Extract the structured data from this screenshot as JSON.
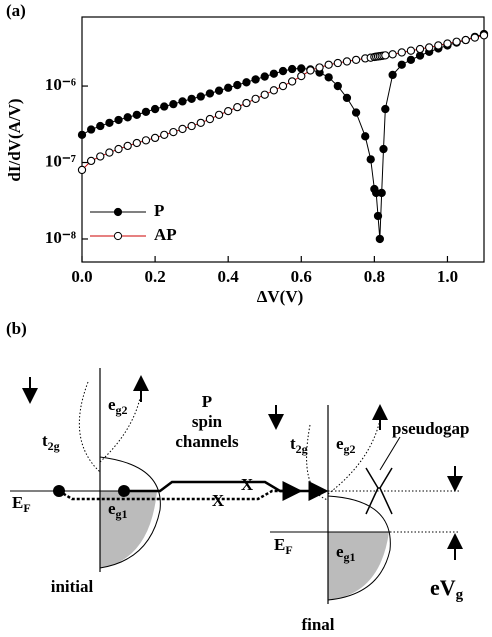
{
  "chart_data": {
    "type": "line",
    "panel": "(a)",
    "x_label": "ΔV(V)",
    "y_label": "dI/dV(A/V)",
    "log_y": true,
    "legend": "lower left",
    "xlim": [
      0,
      1.1
    ],
    "xticks": [
      {
        "value": 0,
        "label": "0.0"
      },
      0.2,
      0.4,
      0.6,
      0.8,
      {
        "value": 1,
        "label": "1.0"
      }
    ],
    "ylim": [
      5e-09,
      8e-06
    ],
    "yticks": [
      {
        "value": 1e-08,
        "label": "10⁻⁸"
      },
      {
        "value": 1e-07,
        "label": "10⁻⁷"
      },
      {
        "value": 1e-06,
        "label": "10⁻⁶"
      }
    ],
    "x": [
      0,
      0.025,
      0.05,
      0.075,
      0.1,
      0.125,
      0.15,
      0.175,
      0.2,
      0.225,
      0.25,
      0.275,
      0.3,
      0.325,
      0.35,
      0.375,
      0.4,
      0.425,
      0.45,
      0.475,
      0.5,
      0.525,
      0.55,
      0.575,
      0.6,
      0.625,
      0.65,
      0.675,
      0.7,
      0.725,
      0.75,
      0.775,
      0.79,
      0.8,
      0.805,
      0.81,
      0.815,
      0.82,
      0.825,
      0.83,
      0.85,
      0.875,
      0.9,
      0.925,
      0.95,
      0.975,
      1.0,
      1.025,
      1.05,
      1.075,
      1.1
    ],
    "series": [
      {
        "name": "P",
        "color": "#000000",
        "marker": "filled",
        "values": [
          2.3e-07,
          2.7e-07,
          3e-07,
          3.3e-07,
          3.6e-07,
          3.9e-07,
          4.2e-07,
          4.6e-07,
          5e-07,
          5.4e-07,
          5.8e-07,
          6.3e-07,
          6.8e-07,
          7.3e-07,
          8e-07,
          8.7e-07,
          9.5e-07,
          1.03e-06,
          1.12e-06,
          1.22e-06,
          1.33e-06,
          1.45e-06,
          1.57e-06,
          1.67e-06,
          1.7e-06,
          1.65e-06,
          1.5e-06,
          1.3e-06,
          1e-06,
          7e-07,
          4.5e-07,
          2.2e-07,
          1.1e-07,
          4.5e-08,
          4e-08,
          2e-08,
          1e-08,
          4e-08,
          1.5e-07,
          5e-07,
          1.4e-06,
          1.9e-06,
          2.2e-06,
          2.5e-06,
          2.8e-06,
          3.1e-06,
          3.4e-06,
          3.7e-06,
          4e-06,
          4.4e-06,
          4.8e-06
        ]
      },
      {
        "name": "AP",
        "color": "#cc0000",
        "marker": "open",
        "values": [
          8e-08,
          1.05e-07,
          1.2e-07,
          1.35e-07,
          1.5e-07,
          1.65e-07,
          1.8e-07,
          1.95e-07,
          2.1e-07,
          2.3e-07,
          2.5e-07,
          2.75e-07,
          3e-07,
          3.3e-07,
          3.7e-07,
          4.2e-07,
          4.7e-07,
          5.3e-07,
          6e-07,
          6.8e-07,
          7.7e-07,
          8.8e-07,
          1e-06,
          1.15e-06,
          1.35e-06,
          1.6e-06,
          1.75e-06,
          1.9e-06,
          2e-06,
          2.1e-06,
          2.2e-06,
          2.3e-06,
          2.35e-06,
          2.4e-06,
          2.42e-06,
          2.44e-06,
          2.46e-06,
          2.48e-06,
          2.5e-06,
          2.52e-06,
          2.6e-06,
          2.75e-06,
          2.9e-06,
          3.05e-06,
          3.2e-06,
          3.4e-06,
          3.6e-06,
          3.8e-06,
          4e-06,
          4.3e-06,
          4.6e-06
        ]
      }
    ]
  },
  "diagram": {
    "panel": "(b)",
    "initial": {
      "t2g": {
        "text": "t",
        "sub": "2g"
      },
      "eg2": {
        "text": "e",
        "sub": "g2"
      },
      "eg1": {
        "text": "e",
        "sub": "g1"
      },
      "ef": {
        "text": "E",
        "sub": "F"
      },
      "name": "initial"
    },
    "channels": [
      "P",
      "spin",
      "channels"
    ],
    "crossings": [
      "X",
      "X"
    ],
    "final": {
      "t2g": {
        "text": "t",
        "sub": "2g"
      },
      "eg2": {
        "text": "e",
        "sub": "g2"
      },
      "eg1": {
        "text": "e",
        "sub": "g1"
      },
      "ef": {
        "text": "E",
        "sub": "F"
      },
      "pseudogap": "pseudogap",
      "name": "final"
    },
    "bias": {
      "text": "eV",
      "sub": "g"
    }
  }
}
